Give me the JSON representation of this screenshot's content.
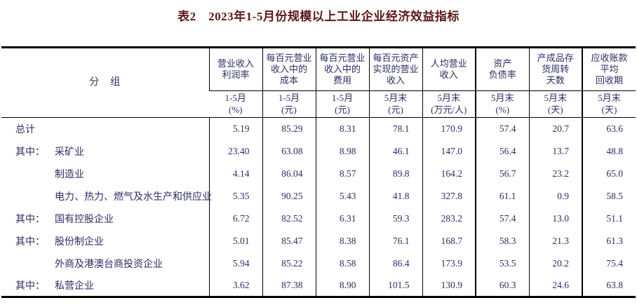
{
  "title": "表2　2023年1-5月份规模以上工业企业经济效益指标",
  "table": {
    "group_header": "分　组",
    "columns": [
      {
        "title": "营业收入\n利润率",
        "period": "1-5月",
        "unit": "(%)"
      },
      {
        "title": "每百元营业\n收入中的\n成本",
        "period": "1-5月",
        "unit": "(元)"
      },
      {
        "title": "每百元营业\n收入中的\n费用",
        "period": "1-5月",
        "unit": "(元)"
      },
      {
        "title": "每百元资产\n实现的营业\n收入",
        "period": "5月末",
        "unit": "(元)"
      },
      {
        "title": "人均营业\n收入",
        "period": "5月末",
        "unit": "(万元/人)"
      },
      {
        "title": "资产\n负债率",
        "period": "5月末",
        "unit": "(%)"
      },
      {
        "title": "产成品存\n货周转\n天数",
        "period": "5月末",
        "unit": "(天)"
      },
      {
        "title": "应收账款\n平均\n回收期",
        "period": "5月末",
        "unit": "(天)"
      }
    ],
    "rows": [
      {
        "prefix": "",
        "label": "总计",
        "indent": 0,
        "values": [
          "5.19",
          "85.29",
          "8.31",
          "78.1",
          "170.9",
          "57.4",
          "20.7",
          "63.6"
        ]
      },
      {
        "prefix": "其中：",
        "label": "采矿业",
        "indent": 0,
        "values": [
          "23.40",
          "63.08",
          "8.98",
          "46.1",
          "147.0",
          "56.4",
          "13.7",
          "48.8"
        ]
      },
      {
        "prefix": "",
        "label": "制造业",
        "indent": 1,
        "values": [
          "4.14",
          "86.04",
          "8.57",
          "89.8",
          "164.2",
          "56.7",
          "23.2",
          "65.0"
        ]
      },
      {
        "prefix": "",
        "label": "电力、热力、燃气及水生产和供应业",
        "indent": 1,
        "values": [
          "5.35",
          "90.25",
          "5.43",
          "41.8",
          "327.8",
          "61.1",
          "0.9",
          "58.5"
        ]
      },
      {
        "prefix": "其中：",
        "label": "国有控股企业",
        "indent": 0,
        "values": [
          "6.72",
          "82.52",
          "6.31",
          "59.3",
          "283.2",
          "57.4",
          "13.0",
          "51.1"
        ]
      },
      {
        "prefix": "其中：",
        "label": "股份制企业",
        "indent": 0,
        "values": [
          "5.01",
          "85.47",
          "8.38",
          "76.1",
          "168.7",
          "58.3",
          "21.3",
          "61.3"
        ]
      },
      {
        "prefix": "",
        "label": "外商及港澳台商投资企业",
        "indent": 1,
        "values": [
          "5.94",
          "85.22",
          "8.58",
          "86.4",
          "173.9",
          "53.5",
          "20.2",
          "75.4"
        ]
      },
      {
        "prefix": "其中：",
        "label": "私营企业",
        "indent": 0,
        "values": [
          "3.62",
          "87.38",
          "8.90",
          "101.5",
          "130.9",
          "60.3",
          "24.6",
          "63.8"
        ]
      }
    ],
    "thick_border_before_columns": [
      5,
      7
    ]
  },
  "colors": {
    "title_text": "#5e1616",
    "table_text": "#2d2d66",
    "border": "#000000",
    "background": "#ffffff"
  }
}
